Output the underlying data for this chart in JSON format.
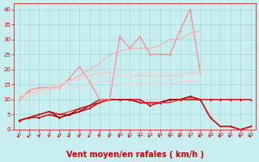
{
  "background_color": "#c8eef0",
  "grid_color": "#a0d8dc",
  "xlabel": "Vent moyen/en rafales ( km/h )",
  "xlabel_color": "#cc0000",
  "xlabel_fontsize": 7.0,
  "tick_color": "#cc0000",
  "ylim": [
    0,
    42
  ],
  "xlim": [
    -0.5,
    23.5
  ],
  "yticks": [
    0,
    5,
    10,
    15,
    20,
    25,
    30,
    35,
    40
  ],
  "xticks": [
    0,
    1,
    2,
    3,
    4,
    5,
    6,
    7,
    8,
    9,
    10,
    11,
    12,
    13,
    14,
    15,
    16,
    17,
    18,
    19,
    20,
    21,
    22,
    23
  ],
  "lines": [
    {
      "x": [
        0,
        1,
        2,
        3,
        4,
        5,
        6,
        7,
        8,
        9,
        10,
        11,
        12,
        13,
        14,
        15,
        16,
        17,
        18,
        19,
        20,
        21,
        22,
        23
      ],
      "y": [
        3,
        4,
        4,
        5,
        4,
        5,
        7,
        8,
        10,
        10,
        10,
        10,
        10,
        8,
        9,
        10,
        10,
        11,
        10,
        10,
        10,
        10,
        10,
        10
      ],
      "color": "#cc0000",
      "lw": 1.0,
      "marker": "^",
      "ms": 2.0,
      "alpha": 1.0
    },
    {
      "x": [
        0,
        1,
        2,
        3,
        4,
        5,
        6,
        7,
        8,
        9,
        10,
        11,
        12,
        13,
        14,
        15,
        16,
        17,
        18,
        19,
        20,
        21,
        22,
        23
      ],
      "y": [
        3,
        4,
        5,
        6,
        5,
        5,
        6,
        7,
        9,
        10,
        10,
        10,
        9,
        9,
        9,
        10,
        10,
        11,
        10,
        4,
        1,
        1,
        0,
        1
      ],
      "color": "#cc0000",
      "lw": 1.0,
      "marker": "v",
      "ms": 2.0,
      "alpha": 1.0
    },
    {
      "x": [
        0,
        1,
        2,
        3,
        4,
        5,
        6,
        7,
        8,
        9,
        10,
        11,
        12,
        13,
        14,
        15,
        16,
        17,
        18,
        19,
        20,
        21,
        22,
        23
      ],
      "y": [
        3,
        4,
        5,
        6,
        4,
        5,
        6,
        8,
        9,
        10,
        10,
        10,
        9,
        9,
        9,
        10,
        10,
        10,
        10,
        4,
        1,
        1,
        0,
        1
      ],
      "color": "#990000",
      "lw": 1.0,
      "marker": null,
      "ms": 0,
      "alpha": 1.0
    },
    {
      "x": [
        0,
        1,
        2,
        3,
        4,
        5,
        6,
        7,
        8,
        9,
        10,
        11,
        12,
        13,
        14,
        15,
        16,
        17,
        18,
        19,
        20,
        21,
        22,
        23
      ],
      "y": [
        3,
        4,
        5,
        6,
        5,
        6,
        7,
        8,
        9,
        10,
        10,
        10,
        9,
        9,
        9,
        9,
        10,
        10,
        10,
        4,
        1,
        1,
        0,
        1
      ],
      "color": "#dd2222",
      "lw": 0.8,
      "marker": null,
      "ms": 0,
      "alpha": 1.0
    },
    {
      "x": [
        0,
        1,
        2,
        3,
        4,
        5,
        6,
        7,
        8,
        9,
        10,
        11,
        12,
        13,
        14,
        15,
        16,
        17,
        18,
        19,
        20,
        21,
        22,
        23
      ],
      "y": [
        10,
        13,
        14,
        14,
        14,
        17,
        21,
        16,
        10,
        10,
        31,
        27,
        31,
        25,
        25,
        25,
        33,
        40,
        19,
        null,
        null,
        null,
        null,
        null
      ],
      "color": "#ff8888",
      "lw": 0.9,
      "marker": "^",
      "ms": 2.0,
      "alpha": 1.0
    },
    {
      "x": [
        0,
        1,
        2,
        3,
        4,
        5,
        6,
        7,
        8,
        9,
        10,
        11,
        12,
        13,
        14,
        15,
        16,
        17,
        18,
        19,
        20,
        21,
        22,
        23
      ],
      "y": [
        11,
        12,
        13,
        14,
        15,
        16,
        18,
        20,
        22,
        25,
        26,
        27,
        27,
        27,
        28,
        30,
        30,
        32,
        33,
        null,
        null,
        null,
        null,
        null
      ],
      "color": "#ffaaaa",
      "lw": 0.9,
      "marker": null,
      "ms": 0,
      "alpha": 0.9
    },
    {
      "x": [
        0,
        1,
        2,
        3,
        4,
        5,
        6,
        7,
        8,
        9,
        10,
        11,
        12,
        13,
        14,
        15,
        16,
        17,
        18,
        19,
        20,
        21,
        22,
        23
      ],
      "y": [
        10,
        12,
        13,
        14,
        15,
        16,
        17,
        18,
        19,
        19,
        18,
        18,
        18,
        18,
        18,
        18,
        18,
        19,
        19,
        null,
        null,
        null,
        null,
        null
      ],
      "color": "#ffbbbb",
      "lw": 0.9,
      "marker": null,
      "ms": 0,
      "alpha": 0.8
    },
    {
      "x": [
        0,
        1,
        2,
        3,
        4,
        5,
        6,
        7,
        8,
        9,
        10,
        11,
        12,
        13,
        14,
        15,
        16,
        17,
        18,
        19,
        20,
        21,
        22,
        23
      ],
      "y": [
        10,
        11,
        12,
        13,
        14,
        14,
        14,
        15,
        16,
        16,
        15,
        15,
        15,
        15,
        15,
        15,
        16,
        16,
        16,
        null,
        null,
        null,
        null,
        null
      ],
      "color": "#ffcccc",
      "lw": 0.9,
      "marker": null,
      "ms": 0,
      "alpha": 0.7
    },
    {
      "x": [
        0,
        1,
        2,
        3,
        4,
        5,
        6,
        7,
        8,
        9,
        10,
        11,
        12,
        13,
        14,
        15,
        16,
        17,
        18,
        19,
        20,
        21,
        22,
        23
      ],
      "y": [
        11,
        12,
        13,
        14,
        15,
        16,
        17,
        17,
        19,
        18,
        18,
        18,
        17,
        17,
        17,
        17,
        18,
        18,
        17,
        null,
        null,
        null,
        null,
        null
      ],
      "color": "#ffdddd",
      "lw": 0.9,
      "marker": null,
      "ms": 0,
      "alpha": 0.6
    }
  ],
  "arrow_angles": [
    225,
    225,
    200,
    200,
    215,
    215,
    210,
    215,
    200,
    210,
    210,
    215,
    200,
    215,
    210,
    200,
    215,
    210,
    215,
    210,
    215,
    215,
    210,
    215
  ],
  "arrows_x": [
    0,
    1,
    2,
    3,
    4,
    5,
    6,
    7,
    8,
    9,
    10,
    11,
    12,
    13,
    14,
    15,
    16,
    17,
    18,
    19,
    20,
    21,
    22,
    23
  ]
}
